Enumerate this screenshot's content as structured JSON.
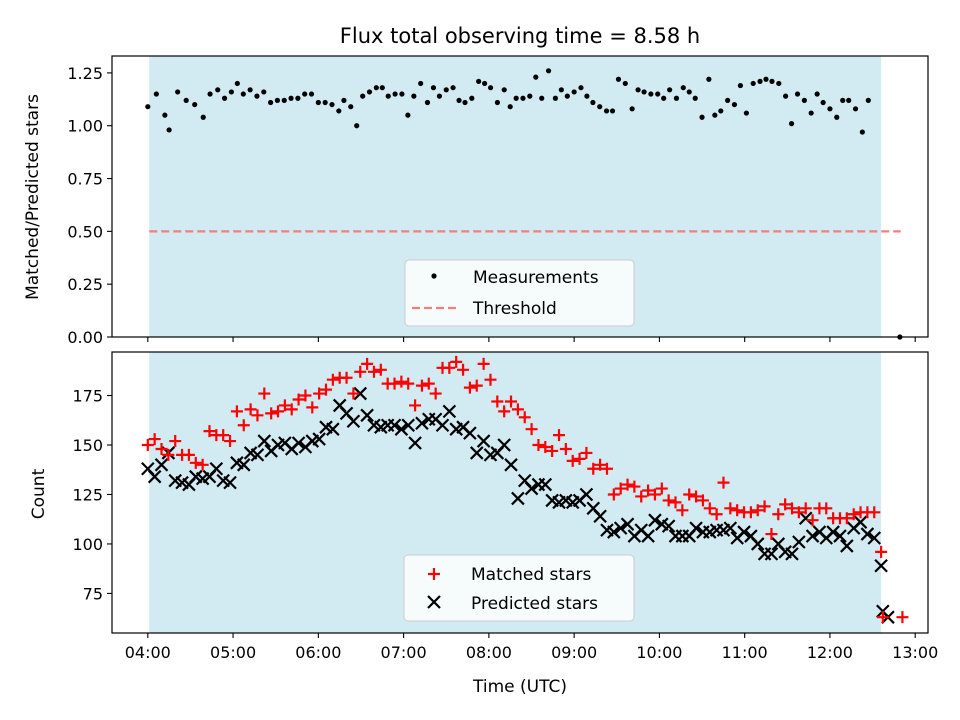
{
  "figure": {
    "title": "Flux total observing time = 8.58 h"
  },
  "chart_data": [
    {
      "type": "scatter",
      "title": "Flux total observing time = 8.58 h",
      "xlabel": "",
      "ylabel": "Matched/Predicted stars",
      "xlim": [
        3.58,
        13.15
      ],
      "ylim": [
        0.0,
        1.33
      ],
      "y_ticks": [
        0.0,
        0.25,
        0.5,
        0.75,
        1.0,
        1.25
      ],
      "y_tick_labels": [
        "0.00",
        "0.25",
        "0.50",
        "0.75",
        "1.00",
        "1.25"
      ],
      "shaded_interval": [
        4.017,
        12.6
      ],
      "threshold": {
        "name": "Threshold",
        "value": 0.5,
        "x_range": [
          4.017,
          12.83
        ],
        "color": "#f08080"
      },
      "series": [
        {
          "name": "Measurements",
          "marker": "dot",
          "color": "#000000",
          "points": [
            [
              4.0,
              1.09
            ],
            [
              4.1,
              1.15
            ],
            [
              4.2,
              1.05
            ],
            [
              4.25,
              0.98
            ],
            [
              4.35,
              1.16
            ],
            [
              4.45,
              1.12
            ],
            [
              4.55,
              1.1
            ],
            [
              4.65,
              1.04
            ],
            [
              4.73,
              1.15
            ],
            [
              4.82,
              1.17
            ],
            [
              4.9,
              1.13
            ],
            [
              4.98,
              1.16
            ],
            [
              5.05,
              1.2
            ],
            [
              5.12,
              1.15
            ],
            [
              5.2,
              1.17
            ],
            [
              5.28,
              1.14
            ],
            [
              5.36,
              1.16
            ],
            [
              5.44,
              1.11
            ],
            [
              5.52,
              1.12
            ],
            [
              5.6,
              1.12
            ],
            [
              5.68,
              1.13
            ],
            [
              5.76,
              1.13
            ],
            [
              5.84,
              1.15
            ],
            [
              5.92,
              1.15
            ],
            [
              6.0,
              1.11
            ],
            [
              6.08,
              1.11
            ],
            [
              6.16,
              1.1
            ],
            [
              6.24,
              1.07
            ],
            [
              6.3,
              1.12
            ],
            [
              6.38,
              1.09
            ],
            [
              6.45,
              1.0
            ],
            [
              6.52,
              1.14
            ],
            [
              6.6,
              1.16
            ],
            [
              6.68,
              1.18
            ],
            [
              6.75,
              1.18
            ],
            [
              6.82,
              1.14
            ],
            [
              6.9,
              1.15
            ],
            [
              6.98,
              1.15
            ],
            [
              7.05,
              1.05
            ],
            [
              7.12,
              1.14
            ],
            [
              7.2,
              1.2
            ],
            [
              7.28,
              1.11
            ],
            [
              7.35,
              1.18
            ],
            [
              7.42,
              1.14
            ],
            [
              7.5,
              1.17
            ],
            [
              7.58,
              1.18
            ],
            [
              7.65,
              1.12
            ],
            [
              7.72,
              1.11
            ],
            [
              7.8,
              1.13
            ],
            [
              7.88,
              1.21
            ],
            [
              7.95,
              1.2
            ],
            [
              8.02,
              1.18
            ],
            [
              8.1,
              1.11
            ],
            [
              8.18,
              1.17
            ],
            [
              8.25,
              1.09
            ],
            [
              8.32,
              1.13
            ],
            [
              8.4,
              1.13
            ],
            [
              8.48,
              1.14
            ],
            [
              8.55,
              1.23
            ],
            [
              8.62,
              1.13
            ],
            [
              8.7,
              1.26
            ],
            [
              8.78,
              1.13
            ],
            [
              8.85,
              1.17
            ],
            [
              8.92,
              1.14
            ],
            [
              9.0,
              1.16
            ],
            [
              9.08,
              1.18
            ],
            [
              9.15,
              1.14
            ],
            [
              9.22,
              1.11
            ],
            [
              9.3,
              1.09
            ],
            [
              9.38,
              1.07
            ],
            [
              9.45,
              1.07
            ],
            [
              9.52,
              1.22
            ],
            [
              9.6,
              1.2
            ],
            [
              9.68,
              1.08
            ],
            [
              9.75,
              1.17
            ],
            [
              9.82,
              1.16
            ],
            [
              9.9,
              1.15
            ],
            [
              9.98,
              1.15
            ],
            [
              10.05,
              1.13
            ],
            [
              10.12,
              1.17
            ],
            [
              10.2,
              1.13
            ],
            [
              10.28,
              1.18
            ],
            [
              10.35,
              1.16
            ],
            [
              10.42,
              1.13
            ],
            [
              10.5,
              1.04
            ],
            [
              10.58,
              1.22
            ],
            [
              10.65,
              1.05
            ],
            [
              10.72,
              1.07
            ],
            [
              10.8,
              1.12
            ],
            [
              10.88,
              1.1
            ],
            [
              10.95,
              1.19
            ],
            [
              11.02,
              1.06
            ],
            [
              11.1,
              1.2
            ],
            [
              11.18,
              1.21
            ],
            [
              11.25,
              1.22
            ],
            [
              11.32,
              1.21
            ],
            [
              11.4,
              1.2
            ],
            [
              11.48,
              1.14
            ],
            [
              11.55,
              1.01
            ],
            [
              11.62,
              1.15
            ],
            [
              11.7,
              1.12
            ],
            [
              11.78,
              1.06
            ],
            [
              11.85,
              1.15
            ],
            [
              11.92,
              1.11
            ],
            [
              12.0,
              1.08
            ],
            [
              12.08,
              1.04
            ],
            [
              12.15,
              1.12
            ],
            [
              12.22,
              1.12
            ],
            [
              12.3,
              1.08
            ],
            [
              12.38,
              0.97
            ],
            [
              12.45,
              1.12
            ],
            [
              12.82,
              0.0
            ]
          ]
        }
      ],
      "legend": {
        "location": "lower-center",
        "entries": [
          "Measurements",
          "Threshold"
        ]
      }
    },
    {
      "type": "scatter",
      "title": "",
      "xlabel": "Time (UTC)",
      "ylabel": "Count",
      "xlim": [
        3.58,
        13.15
      ],
      "ylim": [
        55,
        197
      ],
      "x_ticks": [
        4,
        5,
        6,
        7,
        8,
        9,
        10,
        11,
        12,
        13
      ],
      "x_tick_labels": [
        "04:00",
        "05:00",
        "06:00",
        "07:00",
        "08:00",
        "09:00",
        "10:00",
        "11:00",
        "12:00",
        "13:00"
      ],
      "y_ticks": [
        75,
        100,
        125,
        150,
        175
      ],
      "y_tick_labels": [
        "75",
        "100",
        "125",
        "150",
        "175"
      ],
      "shaded_interval": [
        4.017,
        12.6
      ],
      "series": [
        {
          "name": "Matched stars",
          "marker": "plus",
          "color": "#ff0000",
          "values": [
            150,
            153,
            148,
            145,
            152,
            145,
            145,
            141,
            140,
            157,
            155,
            155,
            152,
            167,
            160,
            168,
            165,
            176,
            166,
            167,
            170,
            168,
            173,
            175,
            169,
            176,
            178,
            183,
            184,
            184,
            176,
            187,
            191,
            187,
            188,
            181,
            181,
            182,
            181,
            170,
            180,
            181,
            176,
            189,
            189,
            192,
            188,
            179,
            180,
            191,
            183,
            172,
            167,
            172,
            168,
            164,
            158,
            150,
            149,
            147,
            155,
            148,
            142,
            143,
            146,
            138,
            140,
            138,
            125,
            128,
            130,
            129,
            124,
            127,
            125,
            128,
            122,
            121,
            117,
            125,
            124,
            122,
            118,
            115,
            131,
            118,
            117,
            116,
            116,
            117,
            119,
            105,
            115,
            120,
            118,
            116,
            118,
            112,
            118,
            118,
            113,
            113,
            113,
            115,
            116,
            116,
            116,
            96,
            63,
            63
          ]
        },
        {
          "name": "Predicted stars",
          "marker": "cross",
          "color": "#000000",
          "values": [
            138,
            134,
            140,
            146,
            132,
            131,
            130,
            134,
            133,
            134,
            138,
            132,
            131,
            141,
            140,
            146,
            145,
            152,
            147,
            150,
            151,
            148,
            151,
            149,
            152,
            153,
            159,
            158,
            170,
            166,
            162,
            176,
            165,
            160,
            159,
            160,
            160,
            158,
            160,
            151,
            161,
            163,
            163,
            160,
            167,
            158,
            159,
            156,
            146,
            152,
            145,
            146,
            150,
            140,
            123,
            132,
            128,
            130,
            130,
            122,
            121,
            122,
            121,
            122,
            125,
            118,
            114,
            107,
            106,
            108,
            110,
            104,
            107,
            104,
            112,
            110,
            109,
            104,
            104,
            104,
            108,
            106,
            106,
            107,
            107,
            108,
            103,
            106,
            104,
            100,
            95,
            95,
            100,
            96,
            95,
            101,
            113,
            104,
            106,
            103,
            106,
            104,
            99,
            108,
            111,
            105,
            103,
            89,
            63,
            66
          ]
        }
      ],
      "legend": {
        "location": "lower-center",
        "entries": [
          "Matched stars",
          "Predicted stars"
        ]
      }
    }
  ]
}
